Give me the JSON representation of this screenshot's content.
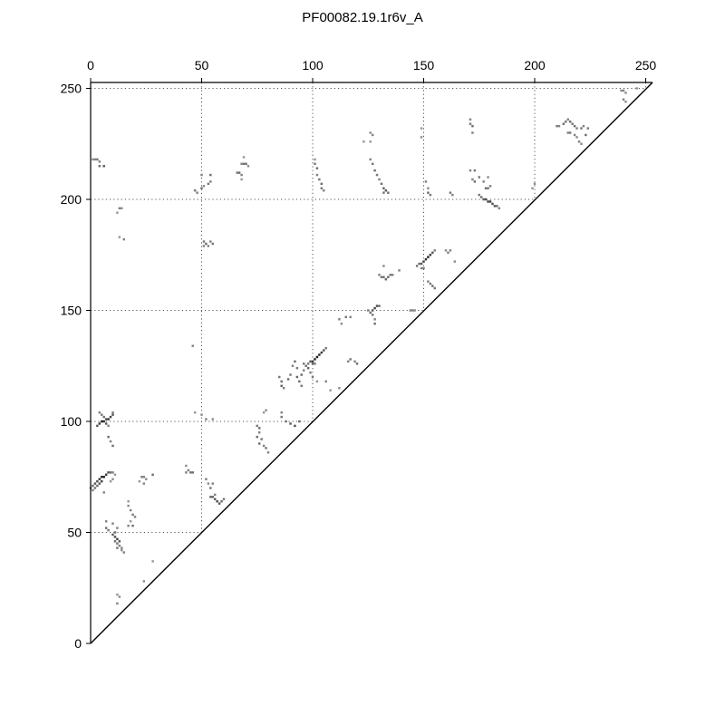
{
  "chart_data": {
    "type": "heatmap",
    "title": "PF00082.19.1r6v_A",
    "xlabel": "",
    "ylabel": "",
    "xlim": [
      0,
      250
    ],
    "ylim": [
      0,
      250
    ],
    "x_ticks": [
      0,
      50,
      100,
      150,
      200,
      250
    ],
    "y_ticks": [
      0,
      50,
      100,
      150,
      200,
      250
    ],
    "grid": true,
    "grid_style": "dotted",
    "x_axis_position": "top",
    "y_axis_position": "left",
    "diagonal": true,
    "value_range": [
      0,
      1
    ],
    "colormap": "greys",
    "points": [
      [
        1,
        218,
        0.45
      ],
      [
        2,
        218,
        0.5
      ],
      [
        3,
        218,
        0.55
      ],
      [
        4,
        217,
        0.5
      ],
      [
        4,
        215,
        0.6
      ],
      [
        6,
        215,
        0.7
      ],
      [
        13,
        196,
        0.5
      ],
      [
        14,
        196,
        0.45
      ],
      [
        12,
        194,
        0.4
      ],
      [
        13,
        183,
        0.4
      ],
      [
        15,
        182,
        0.5
      ],
      [
        4,
        104,
        0.5
      ],
      [
        5,
        103,
        0.55
      ],
      [
        6,
        102,
        0.6
      ],
      [
        7,
        101,
        0.75
      ],
      [
        8,
        101,
        0.85
      ],
      [
        9,
        102,
        0.8
      ],
      [
        10,
        103,
        0.7
      ],
      [
        10,
        104,
        0.5
      ],
      [
        3,
        98,
        0.7
      ],
      [
        4,
        99,
        0.85
      ],
      [
        5,
        100,
        0.95
      ],
      [
        6,
        100,
        0.9
      ],
      [
        7,
        99,
        0.7
      ],
      [
        8,
        98,
        0.5
      ],
      [
        8,
        93,
        0.6
      ],
      [
        9,
        91,
        0.5
      ],
      [
        10,
        89,
        0.6
      ],
      [
        0,
        70,
        0.5
      ],
      [
        1,
        71,
        0.6
      ],
      [
        2,
        72,
        0.7
      ],
      [
        3,
        73,
        0.75
      ],
      [
        4,
        74,
        0.85
      ],
      [
        5,
        75,
        0.9
      ],
      [
        6,
        75,
        0.95
      ],
      [
        7,
        76,
        0.85
      ],
      [
        8,
        77,
        0.75
      ],
      [
        9,
        77,
        0.6
      ],
      [
        10,
        77,
        0.5
      ],
      [
        11,
        76,
        0.4
      ],
      [
        1,
        69,
        0.5
      ],
      [
        2,
        70,
        0.55
      ],
      [
        3,
        71,
        0.6
      ],
      [
        4,
        72,
        0.7
      ],
      [
        5,
        73,
        0.8
      ],
      [
        6,
        68,
        0.5
      ],
      [
        9,
        73,
        0.4
      ],
      [
        10,
        74,
        0.45
      ],
      [
        23,
        75,
        0.5
      ],
      [
        24,
        75,
        0.5
      ],
      [
        25,
        74,
        0.45
      ],
      [
        22,
        73,
        0.4
      ],
      [
        24,
        72,
        0.5
      ],
      [
        28,
        76,
        0.6
      ],
      [
        17,
        64,
        0.4
      ],
      [
        17,
        62,
        0.45
      ],
      [
        18,
        60,
        0.5
      ],
      [
        19,
        58,
        0.55
      ],
      [
        20,
        57,
        0.5
      ],
      [
        18,
        55,
        0.4
      ],
      [
        19,
        53,
        0.6
      ],
      [
        17,
        53,
        0.5
      ],
      [
        7,
        55,
        0.5
      ],
      [
        7,
        52,
        0.6
      ],
      [
        8,
        51,
        0.55
      ],
      [
        10,
        54,
        0.5
      ],
      [
        12,
        52,
        0.5
      ],
      [
        10,
        49,
        0.7
      ],
      [
        11,
        48,
        0.75
      ],
      [
        12,
        47,
        0.8
      ],
      [
        13,
        46,
        0.7
      ],
      [
        11,
        46,
        0.6
      ],
      [
        12,
        45,
        0.55
      ],
      [
        13,
        44,
        0.5
      ],
      [
        14,
        43,
        0.5
      ],
      [
        12,
        43,
        0.55
      ],
      [
        14,
        42,
        0.45
      ],
      [
        15,
        41,
        0.5
      ],
      [
        11,
        50,
        0.6
      ],
      [
        28,
        37,
        0.4
      ],
      [
        24,
        28,
        0.45
      ],
      [
        12,
        22,
        0.4
      ],
      [
        13,
        21,
        0.45
      ],
      [
        12,
        18,
        0.5
      ],
      [
        47,
        204,
        0.55
      ],
      [
        48,
        203,
        0.5
      ],
      [
        50,
        205,
        0.6
      ],
      [
        51,
        206,
        0.45
      ],
      [
        53,
        207,
        0.55
      ],
      [
        54,
        208,
        0.5
      ],
      [
        54,
        211,
        0.6
      ],
      [
        50,
        211,
        0.5
      ],
      [
        68,
        216,
        0.5
      ],
      [
        69,
        216,
        0.55
      ],
      [
        70,
        216,
        0.6
      ],
      [
        69,
        219,
        0.4
      ],
      [
        71,
        215,
        0.45
      ],
      [
        66,
        212,
        0.55
      ],
      [
        67,
        212,
        0.6
      ],
      [
        68,
        211,
        0.5
      ],
      [
        68,
        209,
        0.4
      ],
      [
        51,
        181,
        0.55
      ],
      [
        52,
        180,
        0.6
      ],
      [
        53,
        179,
        0.5
      ],
      [
        54,
        181,
        0.5
      ],
      [
        55,
        180,
        0.55
      ],
      [
        51,
        179,
        0.5
      ],
      [
        46,
        134,
        0.5
      ],
      [
        43,
        80,
        0.45
      ],
      [
        44,
        78,
        0.5
      ],
      [
        45,
        77,
        0.55
      ],
      [
        46,
        77,
        0.6
      ],
      [
        43,
        77,
        0.5
      ],
      [
        47,
        104,
        0.4
      ],
      [
        50,
        103,
        0.45
      ],
      [
        52,
        101,
        0.5
      ],
      [
        55,
        101,
        0.45
      ],
      [
        52,
        74,
        0.5
      ],
      [
        53,
        72,
        0.45
      ],
      [
        55,
        72,
        0.5
      ],
      [
        54,
        70,
        0.55
      ],
      [
        54,
        66,
        0.6
      ],
      [
        55,
        66,
        0.65
      ],
      [
        56,
        65,
        0.7
      ],
      [
        57,
        64,
        0.75
      ],
      [
        58,
        63,
        0.7
      ],
      [
        59,
        64,
        0.6
      ],
      [
        60,
        65,
        0.55
      ],
      [
        56,
        67,
        0.5
      ],
      [
        75,
        98,
        0.55
      ],
      [
        76,
        97,
        0.6
      ],
      [
        76,
        95,
        0.5
      ],
      [
        75,
        93,
        0.6
      ],
      [
        77,
        92,
        0.55
      ],
      [
        76,
        90,
        0.6
      ],
      [
        78,
        89,
        0.5
      ],
      [
        79,
        88,
        0.55
      ],
      [
        80,
        86,
        0.5
      ],
      [
        78,
        104,
        0.4
      ],
      [
        79,
        105,
        0.45
      ],
      [
        86,
        104,
        0.5
      ],
      [
        86,
        102,
        0.55
      ],
      [
        88,
        100,
        0.6
      ],
      [
        90,
        99,
        0.7
      ],
      [
        92,
        98,
        0.75
      ],
      [
        94,
        100,
        0.6
      ],
      [
        85,
        120,
        0.55
      ],
      [
        86,
        118,
        0.6
      ],
      [
        86,
        116,
        0.65
      ],
      [
        87,
        115,
        0.5
      ],
      [
        89,
        119,
        0.6
      ],
      [
        90,
        121,
        0.55
      ],
      [
        91,
        125,
        0.5
      ],
      [
        92,
        127,
        0.6
      ],
      [
        93,
        124,
        0.55
      ],
      [
        93,
        120,
        0.65
      ],
      [
        94,
        118,
        0.6
      ],
      [
        95,
        116,
        0.55
      ],
      [
        95,
        121,
        0.6
      ],
      [
        96,
        123,
        0.5
      ],
      [
        96,
        126,
        0.55
      ],
      [
        97,
        125,
        0.6
      ],
      [
        98,
        124,
        0.65
      ],
      [
        98,
        126,
        0.55
      ],
      [
        99,
        127,
        0.7
      ],
      [
        100,
        127,
        0.85
      ],
      [
        101,
        128,
        0.95
      ],
      [
        102,
        129,
        1.0
      ],
      [
        103,
        130,
        0.95
      ],
      [
        104,
        131,
        0.85
      ],
      [
        105,
        132,
        0.7
      ],
      [
        106,
        133,
        0.55
      ],
      [
        100,
        126,
        0.6
      ],
      [
        101,
        126,
        0.55
      ],
      [
        99,
        122,
        0.5
      ],
      [
        100,
        120,
        0.55
      ],
      [
        102,
        118,
        0.4
      ],
      [
        106,
        118,
        0.5
      ],
      [
        108,
        114,
        0.4
      ],
      [
        112,
        115,
        0.45
      ],
      [
        116,
        127,
        0.5
      ],
      [
        117,
        128,
        0.55
      ],
      [
        119,
        127,
        0.5
      ],
      [
        120,
        126,
        0.6
      ],
      [
        101,
        218,
        0.4
      ],
      [
        101,
        216,
        0.55
      ],
      [
        102,
        214,
        0.6
      ],
      [
        102,
        211,
        0.5
      ],
      [
        103,
        209,
        0.55
      ],
      [
        104,
        207,
        0.6
      ],
      [
        104,
        205,
        0.55
      ],
      [
        105,
        204,
        0.5
      ],
      [
        112,
        146,
        0.5
      ],
      [
        113,
        144,
        0.45
      ],
      [
        115,
        147,
        0.55
      ],
      [
        117,
        147,
        0.5
      ],
      [
        125,
        150,
        0.5
      ],
      [
        126,
        149,
        0.6
      ],
      [
        127,
        150,
        0.7
      ],
      [
        128,
        151,
        0.8
      ],
      [
        129,
        152,
        0.75
      ],
      [
        130,
        152,
        0.6
      ],
      [
        127,
        148,
        0.55
      ],
      [
        128,
        146,
        0.5
      ],
      [
        128,
        144,
        0.6
      ],
      [
        130,
        166,
        0.5
      ],
      [
        131,
        165,
        0.55
      ],
      [
        132,
        165,
        0.6
      ],
      [
        133,
        164,
        0.65
      ],
      [
        134,
        165,
        0.6
      ],
      [
        135,
        166,
        0.55
      ],
      [
        136,
        166,
        0.5
      ],
      [
        132,
        170,
        0.45
      ],
      [
        139,
        168,
        0.5
      ],
      [
        144,
        150,
        0.5
      ],
      [
        145,
        150,
        0.5
      ],
      [
        146,
        150,
        0.45
      ],
      [
        147,
        170,
        0.55
      ],
      [
        148,
        171,
        0.6
      ],
      [
        149,
        171,
        0.7
      ],
      [
        150,
        172,
        0.8
      ],
      [
        151,
        173,
        0.9
      ],
      [
        152,
        174,
        0.95
      ],
      [
        153,
        175,
        0.85
      ],
      [
        154,
        176,
        0.7
      ],
      [
        155,
        177,
        0.5
      ],
      [
        150,
        169,
        0.55
      ],
      [
        149,
        169,
        0.5
      ],
      [
        152,
        163,
        0.5
      ],
      [
        153,
        162,
        0.55
      ],
      [
        154,
        161,
        0.6
      ],
      [
        155,
        160,
        0.55
      ],
      [
        160,
        177,
        0.45
      ],
      [
        161,
        176,
        0.5
      ],
      [
        162,
        177,
        0.5
      ],
      [
        164,
        172,
        0.45
      ],
      [
        126,
        226,
        0.4
      ],
      [
        127,
        229,
        0.5
      ],
      [
        126,
        230,
        0.45
      ],
      [
        123,
        226,
        0.4
      ],
      [
        126,
        218,
        0.5
      ],
      [
        127,
        216,
        0.55
      ],
      [
        128,
        213,
        0.6
      ],
      [
        129,
        211,
        0.55
      ],
      [
        130,
        209,
        0.5
      ],
      [
        131,
        207,
        0.6
      ],
      [
        132,
        205,
        0.65
      ],
      [
        133,
        204,
        0.7
      ],
      [
        134,
        203,
        0.6
      ],
      [
        132,
        203,
        0.55
      ],
      [
        149,
        228,
        0.45
      ],
      [
        149,
        232,
        0.4
      ],
      [
        151,
        208,
        0.5
      ],
      [
        152,
        205,
        0.45
      ],
      [
        152,
        203,
        0.6
      ],
      [
        153,
        202,
        0.55
      ],
      [
        162,
        203,
        0.55
      ],
      [
        163,
        202,
        0.5
      ],
      [
        171,
        236,
        0.5
      ],
      [
        171,
        234,
        0.55
      ],
      [
        172,
        233,
        0.6
      ],
      [
        172,
        230,
        0.5
      ],
      [
        171,
        213,
        0.5
      ],
      [
        173,
        213,
        0.55
      ],
      [
        172,
        209,
        0.5
      ],
      [
        173,
        208,
        0.6
      ],
      [
        175,
        210,
        0.55
      ],
      [
        177,
        208,
        0.5
      ],
      [
        178,
        205,
        0.6
      ],
      [
        179,
        205,
        0.55
      ],
      [
        180,
        206,
        0.5
      ],
      [
        179,
        210,
        0.45
      ],
      [
        175,
        202,
        0.55
      ],
      [
        176,
        201,
        0.6
      ],
      [
        177,
        200,
        0.7
      ],
      [
        178,
        200,
        0.75
      ],
      [
        179,
        199,
        0.8
      ],
      [
        180,
        199,
        0.8
      ],
      [
        181,
        198,
        0.75
      ],
      [
        182,
        197,
        0.7
      ],
      [
        183,
        197,
        0.6
      ],
      [
        184,
        196,
        0.5
      ],
      [
        199,
        205,
        0.4
      ],
      [
        200,
        207,
        0.45
      ],
      [
        210,
        233,
        0.55
      ],
      [
        211,
        233,
        0.5
      ],
      [
        213,
        234,
        0.6
      ],
      [
        214,
        235,
        0.55
      ],
      [
        215,
        236,
        0.5
      ],
      [
        216,
        235,
        0.6
      ],
      [
        217,
        234,
        0.55
      ],
      [
        218,
        233,
        0.6
      ],
      [
        219,
        232,
        0.5
      ],
      [
        221,
        232,
        0.55
      ],
      [
        222,
        233,
        0.5
      ],
      [
        224,
        232,
        0.55
      ],
      [
        215,
        230,
        0.5
      ],
      [
        216,
        230,
        0.55
      ],
      [
        218,
        229,
        0.5
      ],
      [
        219,
        228,
        0.45
      ],
      [
        220,
        226,
        0.5
      ],
      [
        221,
        225,
        0.45
      ],
      [
        223,
        229,
        0.6
      ],
      [
        239,
        249,
        0.45
      ],
      [
        240,
        249,
        0.5
      ],
      [
        241,
        248,
        0.45
      ],
      [
        240,
        245,
        0.5
      ],
      [
        241,
        244,
        0.45
      ],
      [
        246,
        250,
        0.4
      ]
    ]
  }
}
